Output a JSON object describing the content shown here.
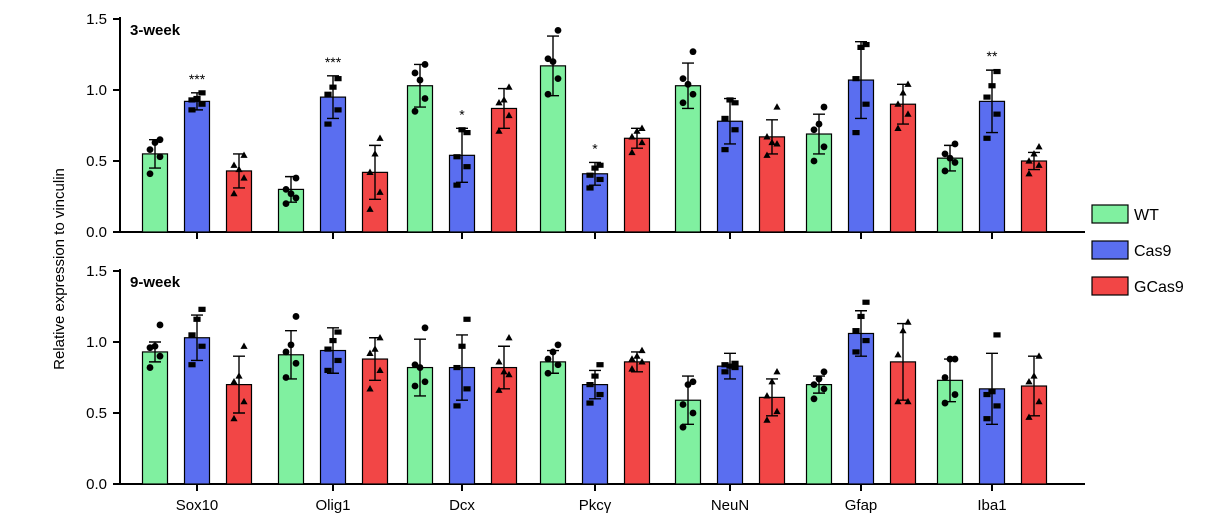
{
  "chart_data": {
    "type": "bar",
    "ylabel": "Relative expression to vinculin",
    "categories": [
      "Sox10",
      "Olig1",
      "Dcx",
      "Pkcγ",
      "NeuN",
      "Gfap",
      "Iba1"
    ],
    "legend": [
      {
        "name": "WT",
        "color": "#80f0a0"
      },
      {
        "name": "Cas9",
        "color": "#5a6ef0"
      },
      {
        "name": "GCas9",
        "color": "#f24646"
      }
    ],
    "y_ticks": [
      "0.0",
      "0.5",
      "1.0",
      "1.5"
    ],
    "ylim": [
      0,
      1.5
    ],
    "panels": [
      {
        "title": "3-week",
        "series": [
          {
            "name": "WT",
            "values": [
              0.55,
              0.3,
              1.03,
              1.17,
              1.03,
              0.69,
              0.52
            ],
            "err": [
              0.1,
              0.09,
              0.15,
              0.21,
              0.16,
              0.14,
              0.09
            ],
            "points": [
              [
                0.41,
                0.53,
                0.58,
                0.65,
                0.63
              ],
              [
                0.2,
                0.24,
                0.3,
                0.38,
                0.27
              ],
              [
                0.85,
                0.94,
                1.12,
                1.18,
                1.07
              ],
              [
                0.97,
                1.08,
                1.22,
                1.42,
                1.2
              ],
              [
                0.91,
                0.97,
                1.08,
                1.27,
                1.04
              ],
              [
                0.5,
                0.6,
                0.72,
                0.88,
                0.76
              ],
              [
                0.43,
                0.49,
                0.55,
                0.62,
                0.52
              ]
            ]
          },
          {
            "name": "Cas9",
            "values": [
              0.92,
              0.95,
              0.54,
              0.41,
              0.78,
              1.07,
              0.92
            ],
            "err": [
              0.06,
              0.15,
              0.19,
              0.08,
              0.16,
              0.27,
              0.22
            ],
            "points": [
              [
                0.86,
                0.9,
                0.93,
                0.98,
                0.94
              ],
              [
                0.76,
                0.86,
                0.97,
                1.08,
                1.02
              ],
              [
                0.33,
                0.46,
                0.53,
                0.7,
                0.72
              ],
              [
                0.31,
                0.37,
                0.4,
                0.47,
                0.45
              ],
              [
                0.58,
                0.72,
                0.8,
                0.91,
                0.93
              ],
              [
                0.7,
                0.9,
                1.08,
                1.32,
                1.3
              ],
              [
                0.66,
                0.83,
                0.95,
                1.13,
                1.03
              ]
            ]
          },
          {
            "name": "GCas9",
            "values": [
              0.43,
              0.42,
              0.87,
              0.66,
              0.67,
              0.9,
              0.5
            ],
            "err": [
              0.12,
              0.19,
              0.14,
              0.07,
              0.12,
              0.14,
              0.06
            ],
            "points": [
              [
                0.27,
                0.38,
                0.47,
                0.54,
                0.44
              ],
              [
                0.16,
                0.28,
                0.42,
                0.66,
                0.55
              ],
              [
                0.71,
                0.82,
                0.91,
                1.02,
                0.93
              ],
              [
                0.56,
                0.63,
                0.67,
                0.73,
                0.71
              ],
              [
                0.54,
                0.62,
                0.67,
                0.88,
                0.63
              ],
              [
                0.73,
                0.83,
                0.9,
                1.04,
                0.98
              ],
              [
                0.41,
                0.47,
                0.5,
                0.6,
                0.55
              ]
            ]
          }
        ],
        "annotations": [
          {
            "category": "Sox10",
            "series": "Cas9",
            "text": "***"
          },
          {
            "category": "Olig1",
            "series": "Cas9",
            "text": "***"
          },
          {
            "category": "Dcx",
            "series": "Cas9",
            "text": "*"
          },
          {
            "category": "Pkcγ",
            "series": "Cas9",
            "text": "*"
          },
          {
            "category": "Iba1",
            "series": "Cas9",
            "text": "**"
          }
        ]
      },
      {
        "title": "9-week",
        "series": [
          {
            "name": "WT",
            "values": [
              0.93,
              0.91,
              0.82,
              0.86,
              0.59,
              0.7,
              0.73
            ],
            "err": [
              0.07,
              0.17,
              0.2,
              0.08,
              0.17,
              0.06,
              0.15
            ],
            "points": [
              [
                0.82,
                0.9,
                0.96,
                1.12,
                0.97
              ],
              [
                0.75,
                0.85,
                0.93,
                1.18,
                0.98
              ],
              [
                0.69,
                0.72,
                0.84,
                1.1,
                0.82
              ],
              [
                0.78,
                0.84,
                0.88,
                0.98,
                0.93
              ],
              [
                0.4,
                0.5,
                0.56,
                0.72,
                0.7
              ],
              [
                0.6,
                0.67,
                0.7,
                0.79,
                0.74
              ],
              [
                0.57,
                0.63,
                0.75,
                0.88,
                0.88
              ]
            ]
          },
          {
            "name": "Cas9",
            "values": [
              1.03,
              0.94,
              0.82,
              0.7,
              0.83,
              1.06,
              0.67
            ],
            "err": [
              0.16,
              0.16,
              0.23,
              0.1,
              0.09,
              0.16,
              0.25
            ],
            "points": [
              [
                0.84,
                0.97,
                1.05,
                1.23,
                1.16
              ],
              [
                0.8,
                0.87,
                0.95,
                1.07,
                1.01
              ],
              [
                0.55,
                0.67,
                0.82,
                1.16,
                0.97
              ],
              [
                0.57,
                0.63,
                0.7,
                0.84,
                0.76
              ],
              [
                0.79,
                0.82,
                0.84,
                0.85,
                0.83
              ],
              [
                0.93,
                1.01,
                1.08,
                1.28,
                1.18
              ],
              [
                0.46,
                0.55,
                0.63,
                1.05,
                0.65
              ]
            ]
          },
          {
            "name": "GCas9",
            "values": [
              0.7,
              0.88,
              0.82,
              0.86,
              0.61,
              0.86,
              0.69
            ],
            "err": [
              0.2,
              0.15,
              0.15,
              0.07,
              0.13,
              0.27,
              0.21
            ],
            "points": [
              [
                0.46,
                0.58,
                0.72,
                0.97,
                0.76
              ],
              [
                0.67,
                0.8,
                0.92,
                1.03,
                0.95
              ],
              [
                0.66,
                0.77,
                0.86,
                1.03,
                0.79
              ],
              [
                0.81,
                0.86,
                0.88,
                0.94,
                0.9
              ],
              [
                0.45,
                0.51,
                0.62,
                0.79,
                0.72
              ],
              [
                0.58,
                0.58,
                0.91,
                1.14,
                1.08
              ],
              [
                0.47,
                0.58,
                0.72,
                0.9,
                0.76
              ]
            ]
          }
        ],
        "annotations": []
      }
    ]
  }
}
